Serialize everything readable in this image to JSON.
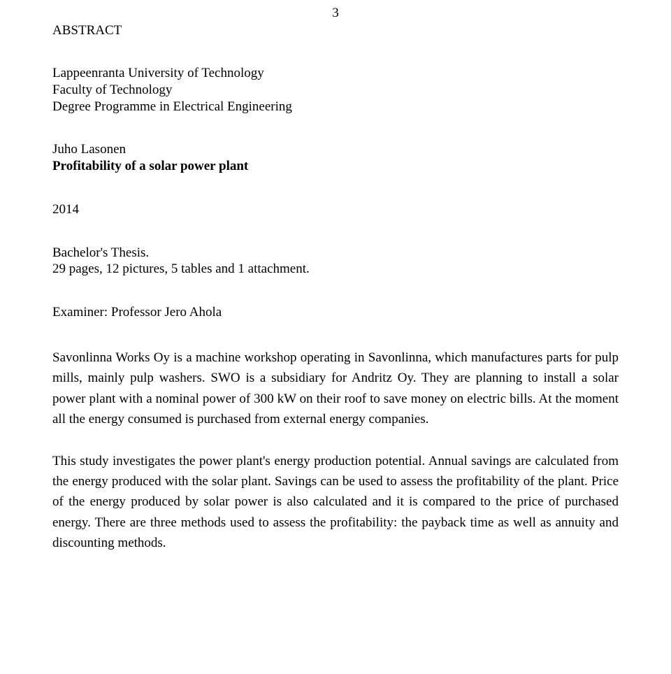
{
  "page_number": "3",
  "heading": "ABSTRACT",
  "affiliation": {
    "university": "Lappeenranta University of Technology",
    "faculty": "Faculty of Technology",
    "programme": "Degree Programme in Electrical Engineering"
  },
  "author": "Juho Lasonen",
  "title": "Profitability of a solar power plant",
  "year": "2014",
  "thesis_type": "Bachelor's Thesis.",
  "extent": "29 pages, 12 pictures, 5 tables and 1 attachment.",
  "examiner": "Examiner: Professor Jero Ahola",
  "paragraphs": {
    "p1": "Savonlinna Works Oy is a machine workshop operating in Savonlinna, which manufactures parts for pulp mills, mainly pulp washers. SWO is a subsidiary for Andritz Oy. They are planning to install a solar power plant with a nominal power of 300 kW on their roof to save money on electric bills. At the moment all the energy consumed is purchased from external energy companies.",
    "p2": "This study investigates the power plant's energy production potential. Annual savings are calculated from the energy produced with the solar plant. Savings can be used to assess the profitability of the plant. Price of the energy produced by solar power is also calculated and it is compared to the price of purchased energy. There are three methods used to assess the profitability: the payback time as well as annuity and discounting methods."
  },
  "style": {
    "font_family": "Times New Roman",
    "body_fontsize_pt": 14,
    "text_color": "#000000",
    "background_color": "#ffffff",
    "line_height_body": 1.55
  }
}
